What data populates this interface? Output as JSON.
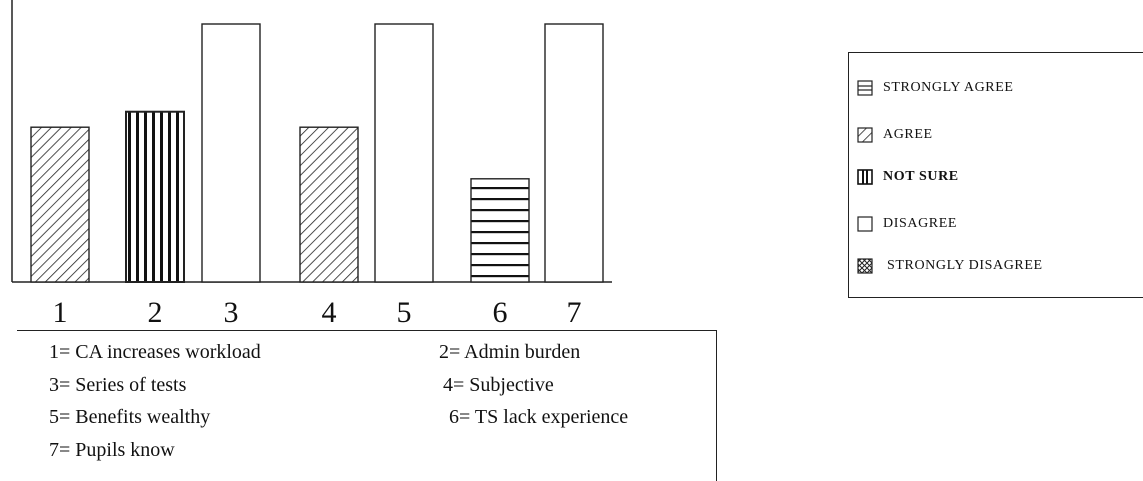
{
  "chart_data": {
    "type": "bar",
    "categories": [
      "1",
      "2",
      "3",
      "4",
      "5",
      "6",
      "7"
    ],
    "values": [
      3,
      3.3,
      5,
      3,
      5,
      2,
      5
    ],
    "patterns": [
      "agree",
      "not-sure",
      "disagree",
      "agree",
      "disagree",
      "strongly-agree",
      "disagree"
    ],
    "ylim": [
      0,
      5
    ],
    "grid": false,
    "legend_position": "right",
    "legend": [
      {
        "label": "STRONGLY AGREE",
        "pattern": "strongly-agree"
      },
      {
        "label": "AGREE",
        "pattern": "agree"
      },
      {
        "label": "NOT SURE",
        "pattern": "not-sure"
      },
      {
        "label": "DISAGREE",
        "pattern": "disagree"
      },
      {
        "label": "STRONGLY DISAGREE",
        "pattern": "strongly-disagree"
      }
    ]
  },
  "key": {
    "items": [
      "1= CA increases workload",
      "2= Admin burden",
      "3= Series of tests",
      "4= Subjective",
      "5= Benefits wealthy",
      "6= TS lack experience",
      "7= Pupils know"
    ]
  }
}
